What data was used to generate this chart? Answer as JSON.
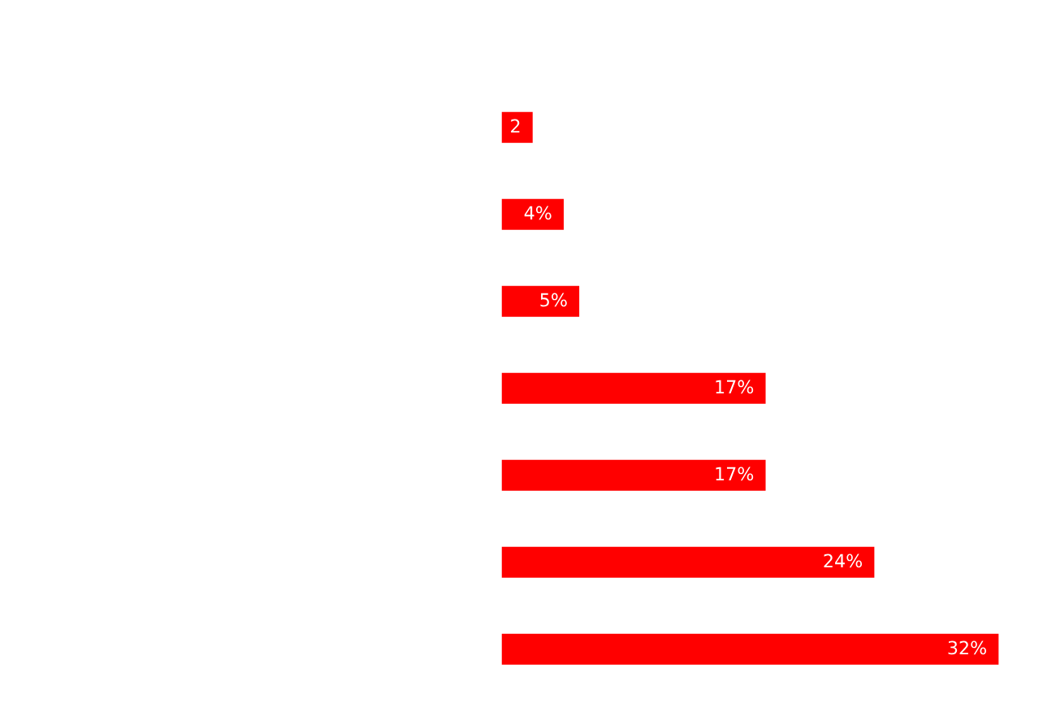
{
  "chart_data": {
    "type": "bar",
    "orientation": "horizontal",
    "categories": [
      null,
      null,
      null,
      null,
      null,
      null,
      null
    ],
    "values": [
      2,
      4,
      5,
      17,
      17,
      24,
      32
    ],
    "value_labels": [
      "2",
      "4%",
      "5%",
      "17%",
      "17%",
      "24%",
      "32%"
    ],
    "color": "#ff0000",
    "tick_labels": false
  }
}
